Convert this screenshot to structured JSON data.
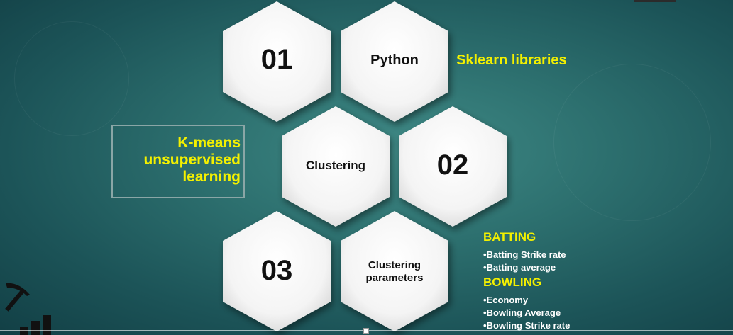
{
  "hexagons": {
    "h01": "01",
    "python": "Python",
    "clustering": "Clustering",
    "h02": "02",
    "h03": "03",
    "clustering_params_line1": "Clustering",
    "clustering_params_line2": "parameters"
  },
  "labels": {
    "sklearn": "Sklearn libraries",
    "kmeans_line1": "K-means",
    "kmeans_line2": "unsupervised",
    "kmeans_line3": "learning"
  },
  "batting": {
    "title": "BATTING",
    "items": [
      "Batting Strike rate",
      "Batting average"
    ]
  },
  "bowling": {
    "title": "BOWLING",
    "items": [
      "Economy",
      "Bowling Average",
      "Bowling Strike rate"
    ]
  },
  "icons": [
    "pickaxe-icon",
    "bar-chart-icon"
  ],
  "colors": {
    "accent_yellow": "#f3f000",
    "hexagon_fill": "#ffffff"
  }
}
